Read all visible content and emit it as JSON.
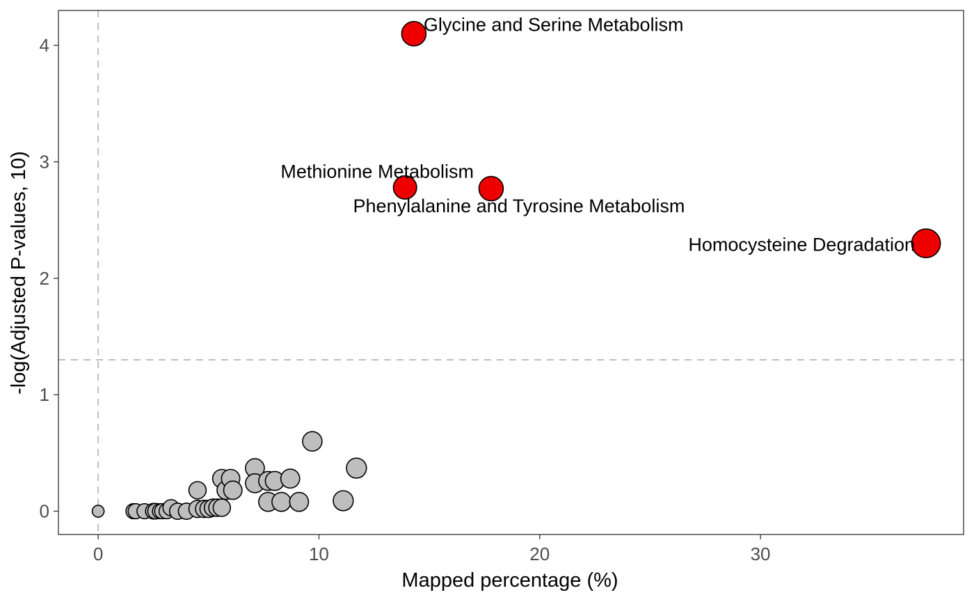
{
  "chart_data": {
    "type": "scatter",
    "title": "",
    "xlabel": "Mapped percentage (%)",
    "ylabel": "-log(Adjusted P-values, 10)",
    "xlim": [
      -1.8,
      39.2
    ],
    "ylim": [
      -0.2,
      4.3
    ],
    "xticks": [
      "0",
      "10",
      "20",
      "30"
    ],
    "yticks": [
      "0",
      "1",
      "2",
      "3",
      "4"
    ],
    "grid": false,
    "legend": "none",
    "reference_lines": {
      "vertical_x": 0,
      "horizontal_y": 1.3
    },
    "colors": {
      "significant": "#ee0000",
      "not_significant": "#bebebe",
      "reference_line": "#bebebe"
    },
    "significant_points": [
      {
        "label": "Glycine and Serine Metabolism",
        "x": 14.3,
        "y": 4.1,
        "size": 3.2
      },
      {
        "label": "Methionine Metabolism",
        "x": 13.9,
        "y": 2.78,
        "size": 3.0
      },
      {
        "label": "Phenylalanine and Tyrosine Metabolism",
        "x": 17.8,
        "y": 2.77,
        "size": 3.2
      },
      {
        "label": "Homocysteine Degradation",
        "x": 37.5,
        "y": 2.3,
        "size": 4.0
      }
    ],
    "other_points": [
      {
        "x": 0.0,
        "y": 0.0,
        "size": 0.9
      },
      {
        "x": 1.6,
        "y": 0.0,
        "size": 1.5
      },
      {
        "x": 1.7,
        "y": 0.0,
        "size": 1.5
      },
      {
        "x": 2.1,
        "y": 0.0,
        "size": 1.5
      },
      {
        "x": 2.5,
        "y": 0.0,
        "size": 1.6
      },
      {
        "x": 2.6,
        "y": 0.0,
        "size": 1.6
      },
      {
        "x": 2.8,
        "y": 0.0,
        "size": 1.5
      },
      {
        "x": 2.9,
        "y": 0.0,
        "size": 1.5
      },
      {
        "x": 3.1,
        "y": 0.0,
        "size": 1.5
      },
      {
        "x": 3.3,
        "y": 0.03,
        "size": 1.7
      },
      {
        "x": 3.6,
        "y": 0.0,
        "size": 1.7
      },
      {
        "x": 4.0,
        "y": 0.0,
        "size": 1.7
      },
      {
        "x": 4.5,
        "y": 0.18,
        "size": 1.9
      },
      {
        "x": 4.5,
        "y": 0.02,
        "size": 1.9
      },
      {
        "x": 4.8,
        "y": 0.02,
        "size": 1.9
      },
      {
        "x": 5.0,
        "y": 0.02,
        "size": 1.9
      },
      {
        "x": 5.2,
        "y": 0.03,
        "size": 1.9
      },
      {
        "x": 5.4,
        "y": 0.03,
        "size": 1.9
      },
      {
        "x": 5.6,
        "y": 0.03,
        "size": 1.9
      },
      {
        "x": 5.6,
        "y": 0.28,
        "size": 2.1
      },
      {
        "x": 5.8,
        "y": 0.18,
        "size": 2.1
      },
      {
        "x": 6.0,
        "y": 0.28,
        "size": 2.1
      },
      {
        "x": 6.1,
        "y": 0.18,
        "size": 2.1
      },
      {
        "x": 7.1,
        "y": 0.37,
        "size": 2.2
      },
      {
        "x": 7.1,
        "y": 0.24,
        "size": 2.2
      },
      {
        "x": 7.7,
        "y": 0.26,
        "size": 2.2
      },
      {
        "x": 7.7,
        "y": 0.08,
        "size": 2.2
      },
      {
        "x": 8.0,
        "y": 0.26,
        "size": 2.2
      },
      {
        "x": 8.3,
        "y": 0.08,
        "size": 2.2
      },
      {
        "x": 8.7,
        "y": 0.28,
        "size": 2.2
      },
      {
        "x": 9.1,
        "y": 0.08,
        "size": 2.2
      },
      {
        "x": 9.7,
        "y": 0.6,
        "size": 2.3
      },
      {
        "x": 11.1,
        "y": 0.09,
        "size": 2.4
      },
      {
        "x": 11.7,
        "y": 0.37,
        "size": 2.4
      }
    ]
  }
}
